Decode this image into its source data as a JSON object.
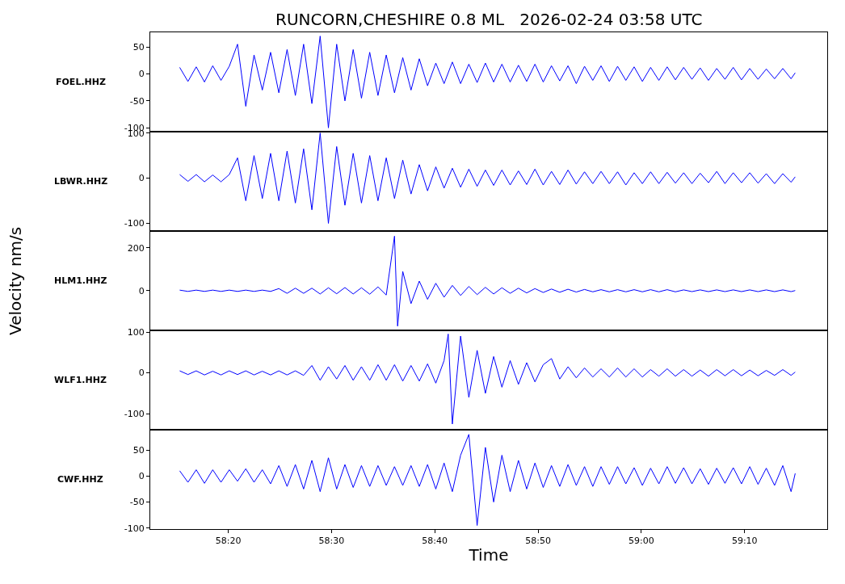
{
  "chart_data": [
    {
      "type": "line",
      "title": "RUNCORN,CHESHIRE 0.8 ML   2026-02-24 03:58 UTC",
      "ylabel": "FOEL.HHZ",
      "tick_labels": "y",
      "grid": false,
      "marker": "none",
      "line_style": "solid",
      "xlim": [
        "2026-02-24T03:58:12.45",
        "2026-02-24T03:59:18"
      ],
      "ylim": [
        -107,
        77
      ],
      "yticks": [
        50,
        0,
        -50,
        -100
      ],
      "x": [
        "2026-02-24T03:58:15.3",
        "2026-02-24T03:58:16.1",
        "2026-02-24T03:58:16.9",
        "2026-02-24T03:58:17.7",
        "2026-02-24T03:58:18.5",
        "2026-02-24T03:58:19.3",
        "2026-02-24T03:58:20.1",
        "2026-02-24T03:58:20.9",
        "2026-02-24T03:58:21.7",
        "2026-02-24T03:58:22.5",
        "2026-02-24T03:58:23.3",
        "2026-02-24T03:58:24.1",
        "2026-02-24T03:58:24.9",
        "2026-02-24T03:58:25.7",
        "2026-02-24T03:58:26.5",
        "2026-02-24T03:58:27.3",
        "2026-02-24T03:58:28.1",
        "2026-02-24T03:58:28.9",
        "2026-02-24T03:58:29.7",
        "2026-02-24T03:58:30.5",
        "2026-02-24T03:58:31.3",
        "2026-02-24T03:58:32.1",
        "2026-02-24T03:58:32.9",
        "2026-02-24T03:58:33.7",
        "2026-02-24T03:58:34.5",
        "2026-02-24T03:58:35.3",
        "2026-02-24T03:58:36.1",
        "2026-02-24T03:58:36.9",
        "2026-02-24T03:58:37.7",
        "2026-02-24T03:58:38.5",
        "2026-02-24T03:58:39.3",
        "2026-02-24T03:58:40.1",
        "2026-02-24T03:58:40.9",
        "2026-02-24T03:58:41.7",
        "2026-02-24T03:58:42.5",
        "2026-02-24T03:58:43.3",
        "2026-02-24T03:58:44.1",
        "2026-02-24T03:58:44.9",
        "2026-02-24T03:58:45.7",
        "2026-02-24T03:58:46.5",
        "2026-02-24T03:58:47.3",
        "2026-02-24T03:58:48.1",
        "2026-02-24T03:58:48.9",
        "2026-02-24T03:58:49.7",
        "2026-02-24T03:58:50.5",
        "2026-02-24T03:58:51.3",
        "2026-02-24T03:58:52.1",
        "2026-02-24T03:58:52.9",
        "2026-02-24T03:58:53.7",
        "2026-02-24T03:58:54.5",
        "2026-02-24T03:58:55.3",
        "2026-02-24T03:58:56.1",
        "2026-02-24T03:58:56.9",
        "2026-02-24T03:58:57.7",
        "2026-02-24T03:58:58.5",
        "2026-02-24T03:58:59.3",
        "2026-02-24T03:59:00.1",
        "2026-02-24T03:59:00.9",
        "2026-02-24T03:59:01.7",
        "2026-02-24T03:59:02.5",
        "2026-02-24T03:59:03.3",
        "2026-02-24T03:59:04.1",
        "2026-02-24T03:59:04.9",
        "2026-02-24T03:59:05.7",
        "2026-02-24T03:59:06.5",
        "2026-02-24T03:59:07.3",
        "2026-02-24T03:59:08.1",
        "2026-02-24T03:59:08.9",
        "2026-02-24T03:59:09.7",
        "2026-02-24T03:59:10.5",
        "2026-02-24T03:59:11.3",
        "2026-02-24T03:59:12.1",
        "2026-02-24T03:59:12.9",
        "2026-02-24T03:59:13.7",
        "2026-02-24T03:59:14.5",
        "2026-02-24T03:59:14.9"
      ],
      "series": [
        {
          "color": "#0000ff",
          "values": [
            12,
            -14,
            13,
            -15,
            15,
            -12,
            14,
            55,
            -60,
            35,
            -30,
            40,
            -35,
            45,
            -40,
            55,
            -55,
            70,
            -100,
            55,
            -50,
            45,
            -45,
            40,
            -40,
            35,
            -35,
            30,
            -30,
            28,
            -22,
            20,
            -18,
            22,
            -18,
            18,
            -16,
            20,
            -15,
            18,
            -15,
            16,
            -14,
            18,
            -15,
            15,
            -13,
            15,
            -18,
            14,
            -12,
            15,
            -14,
            14,
            -12,
            13,
            -14,
            12,
            -12,
            13,
            -11,
            12,
            -10,
            11,
            -12,
            10,
            -10,
            12,
            -11,
            10,
            -10,
            9,
            -9,
            10,
            -9,
            2
          ]
        }
      ]
    },
    {
      "type": "line",
      "ylabel": "LBWR.HHZ",
      "tick_labels": "y",
      "grid": false,
      "marker": "none",
      "line_style": "solid",
      "xlim": [
        "2026-02-24T03:58:12.45",
        "2026-02-24T03:59:18"
      ],
      "ylim": [
        -117,
        103
      ],
      "yticks": [
        100,
        0,
        -100
      ],
      "x": [
        "2026-02-24T03:58:15.3",
        "2026-02-24T03:58:16.1",
        "2026-02-24T03:58:16.9",
        "2026-02-24T03:58:17.7",
        "2026-02-24T03:58:18.5",
        "2026-02-24T03:58:19.3",
        "2026-02-24T03:58:20.1",
        "2026-02-24T03:58:20.9",
        "2026-02-24T03:58:21.7",
        "2026-02-24T03:58:22.5",
        "2026-02-24T03:58:23.3",
        "2026-02-24T03:58:24.1",
        "2026-02-24T03:58:24.9",
        "2026-02-24T03:58:25.7",
        "2026-02-24T03:58:26.5",
        "2026-02-24T03:58:27.3",
        "2026-02-24T03:58:28.1",
        "2026-02-24T03:58:28.9",
        "2026-02-24T03:58:29.7",
        "2026-02-24T03:58:30.5",
        "2026-02-24T03:58:31.3",
        "2026-02-24T03:58:32.1",
        "2026-02-24T03:58:32.9",
        "2026-02-24T03:58:33.7",
        "2026-02-24T03:58:34.5",
        "2026-02-24T03:58:35.3",
        "2026-02-24T03:58:36.1",
        "2026-02-24T03:58:36.9",
        "2026-02-24T03:58:37.7",
        "2026-02-24T03:58:38.5",
        "2026-02-24T03:58:39.3",
        "2026-02-24T03:58:40.1",
        "2026-02-24T03:58:40.9",
        "2026-02-24T03:58:41.7",
        "2026-02-24T03:58:42.5",
        "2026-02-24T03:58:43.3",
        "2026-02-24T03:58:44.1",
        "2026-02-24T03:58:44.9",
        "2026-02-24T03:58:45.7",
        "2026-02-24T03:58:46.5",
        "2026-02-24T03:58:47.3",
        "2026-02-24T03:58:48.1",
        "2026-02-24T03:58:48.9",
        "2026-02-24T03:58:49.7",
        "2026-02-24T03:58:50.5",
        "2026-02-24T03:58:51.3",
        "2026-02-24T03:58:52.1",
        "2026-02-24T03:58:52.9",
        "2026-02-24T03:58:53.7",
        "2026-02-24T03:58:54.5",
        "2026-02-24T03:58:55.3",
        "2026-02-24T03:58:56.1",
        "2026-02-24T03:58:56.9",
        "2026-02-24T03:58:57.7",
        "2026-02-24T03:58:58.5",
        "2026-02-24T03:58:59.3",
        "2026-02-24T03:59:00.1",
        "2026-02-24T03:59:00.9",
        "2026-02-24T03:59:01.7",
        "2026-02-24T03:59:02.5",
        "2026-02-24T03:59:03.3",
        "2026-02-24T03:59:04.1",
        "2026-02-24T03:59:04.9",
        "2026-02-24T03:59:05.7",
        "2026-02-24T03:59:06.5",
        "2026-02-24T03:59:07.3",
        "2026-02-24T03:59:08.1",
        "2026-02-24T03:59:08.9",
        "2026-02-24T03:59:09.7",
        "2026-02-24T03:59:10.5",
        "2026-02-24T03:59:11.3",
        "2026-02-24T03:59:12.1",
        "2026-02-24T03:59:12.9",
        "2026-02-24T03:59:13.7",
        "2026-02-24T03:59:14.5",
        "2026-02-24T03:59:14.9"
      ],
      "series": [
        {
          "color": "#0000ff",
          "values": [
            8,
            -7,
            8,
            -8,
            7,
            -8,
            8,
            45,
            -50,
            50,
            -45,
            55,
            -50,
            60,
            -55,
            65,
            -70,
            100,
            -100,
            70,
            -60,
            55,
            -55,
            50,
            -50,
            45,
            -45,
            40,
            -35,
            30,
            -28,
            25,
            -22,
            22,
            -20,
            20,
            -18,
            18,
            -16,
            18,
            -15,
            16,
            -14,
            20,
            -15,
            15,
            -14,
            18,
            -13,
            14,
            -12,
            15,
            -12,
            14,
            -15,
            12,
            -12,
            14,
            -12,
            13,
            -11,
            12,
            -12,
            11,
            -10,
            15,
            -12,
            12,
            -10,
            12,
            -11,
            10,
            -12,
            10,
            -9,
            3
          ]
        }
      ]
    },
    {
      "type": "line",
      "ylabel": "HLM1.HHZ",
      "annotations": [
        "Velocity nm/s"
      ],
      "tick_labels": "y",
      "grid": false,
      "marker": "none",
      "line_style": "solid",
      "xlim": [
        "2026-02-24T03:58:12.45",
        "2026-02-24T03:59:18"
      ],
      "ylim": [
        -185,
        279
      ],
      "yticks": [
        200,
        0
      ],
      "x": [
        "2026-02-24T03:58:15.3",
        "2026-02-24T03:58:16.1",
        "2026-02-24T03:58:16.9",
        "2026-02-24T03:58:17.7",
        "2026-02-24T03:58:18.5",
        "2026-02-24T03:58:19.3",
        "2026-02-24T03:58:20.1",
        "2026-02-24T03:58:20.9",
        "2026-02-24T03:58:21.7",
        "2026-02-24T03:58:22.5",
        "2026-02-24T03:58:23.3",
        "2026-02-24T03:58:24.1",
        "2026-02-24T03:58:24.9",
        "2026-02-24T03:58:25.7",
        "2026-02-24T03:58:26.5",
        "2026-02-24T03:58:27.3",
        "2026-02-24T03:58:28.1",
        "2026-02-24T03:58:28.9",
        "2026-02-24T03:58:29.7",
        "2026-02-24T03:58:30.5",
        "2026-02-24T03:58:31.3",
        "2026-02-24T03:58:32.1",
        "2026-02-24T03:58:32.9",
        "2026-02-24T03:58:33.7",
        "2026-02-24T03:58:34.5",
        "2026-02-24T03:58:35.3",
        "2026-02-24T03:58:36.1",
        "2026-02-24T03:58:36.4",
        "2026-02-24T03:58:36.9",
        "2026-02-24T03:58:37.7",
        "2026-02-24T03:58:38.5",
        "2026-02-24T03:58:39.3",
        "2026-02-24T03:58:40.1",
        "2026-02-24T03:58:40.9",
        "2026-02-24T03:58:41.7",
        "2026-02-24T03:58:42.5",
        "2026-02-24T03:58:43.3",
        "2026-02-24T03:58:44.1",
        "2026-02-24T03:58:44.9",
        "2026-02-24T03:58:45.7",
        "2026-02-24T03:58:46.5",
        "2026-02-24T03:58:47.3",
        "2026-02-24T03:58:48.1",
        "2026-02-24T03:58:48.9",
        "2026-02-24T03:58:49.7",
        "2026-02-24T03:58:50.5",
        "2026-02-24T03:58:51.3",
        "2026-02-24T03:58:52.1",
        "2026-02-24T03:58:52.9",
        "2026-02-24T03:58:53.7",
        "2026-02-24T03:58:54.5",
        "2026-02-24T03:58:55.3",
        "2026-02-24T03:58:56.1",
        "2026-02-24T03:58:56.9",
        "2026-02-24T03:58:57.7",
        "2026-02-24T03:58:58.5",
        "2026-02-24T03:58:59.3",
        "2026-02-24T03:59:00.1",
        "2026-02-24T03:59:00.9",
        "2026-02-24T03:59:01.7",
        "2026-02-24T03:59:02.5",
        "2026-02-24T03:59:03.3",
        "2026-02-24T03:59:04.1",
        "2026-02-24T03:59:04.9",
        "2026-02-24T03:59:05.7",
        "2026-02-24T03:59:06.5",
        "2026-02-24T03:59:07.3",
        "2026-02-24T03:59:08.1",
        "2026-02-24T03:59:08.9",
        "2026-02-24T03:59:09.7",
        "2026-02-24T03:59:10.5",
        "2026-02-24T03:59:11.3",
        "2026-02-24T03:59:12.1",
        "2026-02-24T03:59:12.9",
        "2026-02-24T03:59:13.7",
        "2026-02-24T03:59:14.5",
        "2026-02-24T03:59:14.9"
      ],
      "series": [
        {
          "color": "#0000ff",
          "values": [
            3,
            -3,
            3,
            -3,
            3,
            -3,
            3,
            -3,
            3,
            -3,
            3,
            -3,
            10,
            -12,
            12,
            -12,
            12,
            -15,
            14,
            -14,
            15,
            -15,
            14,
            -16,
            18,
            -20,
            255,
            -165,
            90,
            -60,
            45,
            -40,
            35,
            -30,
            25,
            -22,
            20,
            -18,
            16,
            -15,
            14,
            -12,
            12,
            -10,
            10,
            -8,
            8,
            -7,
            7,
            -6,
            6,
            -5,
            5,
            -5,
            5,
            -5,
            5,
            -5,
            5,
            -5,
            5,
            -5,
            4,
            -4,
            4,
            -4,
            4,
            -4,
            4,
            -4,
            4,
            -4,
            4,
            -4,
            4,
            -4,
            1
          ]
        }
      ]
    },
    {
      "type": "line",
      "ylabel": "WLF1.HHZ",
      "tick_labels": "y",
      "grid": false,
      "marker": "none",
      "line_style": "solid",
      "xlim": [
        "2026-02-24T03:58:12.45",
        "2026-02-24T03:59:18"
      ],
      "ylim": [
        -139,
        104
      ],
      "yticks": [
        100,
        0,
        -100
      ],
      "x": [
        "2026-02-24T03:58:15.3",
        "2026-02-24T03:58:16.1",
        "2026-02-24T03:58:16.9",
        "2026-02-24T03:58:17.7",
        "2026-02-24T03:58:18.5",
        "2026-02-24T03:58:19.3",
        "2026-02-24T03:58:20.1",
        "2026-02-24T03:58:20.9",
        "2026-02-24T03:58:21.7",
        "2026-02-24T03:58:22.5",
        "2026-02-24T03:58:23.3",
        "2026-02-24T03:58:24.1",
        "2026-02-24T03:58:24.9",
        "2026-02-24T03:58:25.7",
        "2026-02-24T03:58:26.5",
        "2026-02-24T03:58:27.3",
        "2026-02-24T03:58:28.1",
        "2026-02-24T03:58:28.9",
        "2026-02-24T03:58:29.7",
        "2026-02-24T03:58:30.5",
        "2026-02-24T03:58:31.3",
        "2026-02-24T03:58:32.1",
        "2026-02-24T03:58:32.9",
        "2026-02-24T03:58:33.7",
        "2026-02-24T03:58:34.5",
        "2026-02-24T03:58:35.3",
        "2026-02-24T03:58:36.1",
        "2026-02-24T03:58:36.9",
        "2026-02-24T03:58:37.7",
        "2026-02-24T03:58:38.5",
        "2026-02-24T03:58:39.3",
        "2026-02-24T03:58:40.1",
        "2026-02-24T03:58:40.9",
        "2026-02-24T03:58:41.3",
        "2026-02-24T03:58:41.7",
        "2026-02-24T03:58:42.5",
        "2026-02-24T03:58:43.3",
        "2026-02-24T03:58:44.1",
        "2026-02-24T03:58:44.9",
        "2026-02-24T03:58:45.7",
        "2026-02-24T03:58:46.5",
        "2026-02-24T03:58:47.3",
        "2026-02-24T03:58:48.1",
        "2026-02-24T03:58:48.9",
        "2026-02-24T03:58:49.7",
        "2026-02-24T03:58:50.5",
        "2026-02-24T03:58:51.3",
        "2026-02-24T03:58:52.1",
        "2026-02-24T03:58:52.9",
        "2026-02-24T03:58:53.7",
        "2026-02-24T03:58:54.5",
        "2026-02-24T03:58:55.3",
        "2026-02-24T03:58:56.1",
        "2026-02-24T03:58:56.9",
        "2026-02-24T03:58:57.7",
        "2026-02-24T03:58:58.5",
        "2026-02-24T03:58:59.3",
        "2026-02-24T03:59:00.1",
        "2026-02-24T03:59:00.9",
        "2026-02-24T03:59:01.7",
        "2026-02-24T03:59:02.5",
        "2026-02-24T03:59:03.3",
        "2026-02-24T03:59:04.1",
        "2026-02-24T03:59:04.9",
        "2026-02-24T03:59:05.7",
        "2026-02-24T03:59:06.5",
        "2026-02-24T03:59:07.3",
        "2026-02-24T03:59:08.1",
        "2026-02-24T03:59:08.9",
        "2026-02-24T03:59:09.7",
        "2026-02-24T03:59:10.5",
        "2026-02-24T03:59:11.3",
        "2026-02-24T03:59:12.1",
        "2026-02-24T03:59:12.9",
        "2026-02-24T03:59:13.7",
        "2026-02-24T03:59:14.5",
        "2026-02-24T03:59:14.9"
      ],
      "series": [
        {
          "color": "#0000ff",
          "values": [
            5,
            -4,
            5,
            -5,
            4,
            -5,
            5,
            -4,
            5,
            -5,
            4,
            -5,
            5,
            -5,
            5,
            -6,
            18,
            -18,
            15,
            -15,
            18,
            -18,
            15,
            -18,
            20,
            -18,
            20,
            -20,
            18,
            -20,
            22,
            -25,
            30,
            95,
            -125,
            90,
            -60,
            55,
            -50,
            40,
            -35,
            30,
            -28,
            25,
            -22,
            20,
            35,
            -15,
            15,
            -12,
            12,
            -10,
            10,
            -10,
            12,
            -10,
            10,
            -10,
            8,
            -8,
            10,
            -8,
            8,
            -8,
            7,
            -8,
            8,
            -7,
            8,
            -7,
            7,
            -7,
            6,
            -6,
            8,
            -6,
            2
          ]
        }
      ]
    },
    {
      "type": "line",
      "ylabel": "CWF.HHZ",
      "xlabel": "Time",
      "grid": false,
      "marker": "none",
      "line_style": "solid",
      "xlim": [
        "2026-02-24T03:58:12.45",
        "2026-02-24T03:59:18"
      ],
      "xticks": [
        {
          "value": "2026-02-24T03:58:20",
          "label": "58:20"
        },
        {
          "value": "2026-02-24T03:58:30",
          "label": "58:30"
        },
        {
          "value": "2026-02-24T03:58:40",
          "label": "58:40"
        },
        {
          "value": "2026-02-24T03:58:50",
          "label": "58:50"
        },
        {
          "value": "2026-02-24T03:59:00",
          "label": "59:00"
        },
        {
          "value": "2026-02-24T03:59:10",
          "label": "59:10"
        }
      ],
      "ylim": [
        -102,
        89
      ],
      "yticks": [
        50,
        0,
        -50,
        -100
      ],
      "x": [
        "2026-02-24T03:58:15.3",
        "2026-02-24T03:58:16.1",
        "2026-02-24T03:58:16.9",
        "2026-02-24T03:58:17.7",
        "2026-02-24T03:58:18.5",
        "2026-02-24T03:58:19.3",
        "2026-02-24T03:58:20.1",
        "2026-02-24T03:58:20.9",
        "2026-02-24T03:58:21.7",
        "2026-02-24T03:58:22.5",
        "2026-02-24T03:58:23.3",
        "2026-02-24T03:58:24.1",
        "2026-02-24T03:58:24.9",
        "2026-02-24T03:58:25.7",
        "2026-02-24T03:58:26.5",
        "2026-02-24T03:58:27.3",
        "2026-02-24T03:58:28.1",
        "2026-02-24T03:58:28.9",
        "2026-02-24T03:58:29.7",
        "2026-02-24T03:58:30.5",
        "2026-02-24T03:58:31.3",
        "2026-02-24T03:58:32.1",
        "2026-02-24T03:58:32.9",
        "2026-02-24T03:58:33.7",
        "2026-02-24T03:58:34.5",
        "2026-02-24T03:58:35.3",
        "2026-02-24T03:58:36.1",
        "2026-02-24T03:58:36.9",
        "2026-02-24T03:58:37.7",
        "2026-02-24T03:58:38.5",
        "2026-02-24T03:58:39.3",
        "2026-02-24T03:58:40.1",
        "2026-02-24T03:58:40.9",
        "2026-02-24T03:58:41.7",
        "2026-02-24T03:58:42.5",
        "2026-02-24T03:58:43.3",
        "2026-02-24T03:58:44.1",
        "2026-02-24T03:58:44.9",
        "2026-02-24T03:58:45.7",
        "2026-02-24T03:58:46.5",
        "2026-02-24T03:58:47.3",
        "2026-02-24T03:58:48.1",
        "2026-02-24T03:58:48.9",
        "2026-02-24T03:58:49.7",
        "2026-02-24T03:58:50.5",
        "2026-02-24T03:58:51.3",
        "2026-02-24T03:58:52.1",
        "2026-02-24T03:58:52.9",
        "2026-02-24T03:58:53.7",
        "2026-02-24T03:58:54.5",
        "2026-02-24T03:58:55.3",
        "2026-02-24T03:58:56.1",
        "2026-02-24T03:58:56.9",
        "2026-02-24T03:58:57.7",
        "2026-02-24T03:58:58.5",
        "2026-02-24T03:58:59.3",
        "2026-02-24T03:59:00.1",
        "2026-02-24T03:59:00.9",
        "2026-02-24T03:59:01.7",
        "2026-02-24T03:59:02.5",
        "2026-02-24T03:59:03.3",
        "2026-02-24T03:59:04.1",
        "2026-02-24T03:59:04.9",
        "2026-02-24T03:59:05.7",
        "2026-02-24T03:59:06.5",
        "2026-02-24T03:59:07.3",
        "2026-02-24T03:59:08.1",
        "2026-02-24T03:59:08.9",
        "2026-02-24T03:59:09.7",
        "2026-02-24T03:59:10.5",
        "2026-02-24T03:59:11.3",
        "2026-02-24T03:59:12.1",
        "2026-02-24T03:59:12.9",
        "2026-02-24T03:59:13.7",
        "2026-02-24T03:59:14.5",
        "2026-02-24T03:59:14.9"
      ],
      "series": [
        {
          "color": "#0000ff",
          "values": [
            10,
            -12,
            12,
            -14,
            12,
            -12,
            12,
            -10,
            14,
            -12,
            12,
            -15,
            20,
            -20,
            22,
            -25,
            30,
            -30,
            35,
            -25,
            22,
            -22,
            20,
            -20,
            20,
            -18,
            18,
            -18,
            20,
            -20,
            22,
            -25,
            25,
            -30,
            40,
            80,
            -95,
            55,
            -50,
            40,
            -30,
            30,
            -25,
            25,
            -22,
            20,
            -20,
            22,
            -18,
            18,
            -20,
            18,
            -16,
            18,
            -15,
            16,
            -18,
            15,
            -15,
            18,
            -14,
            16,
            -15,
            14,
            -16,
            15,
            -14,
            16,
            -15,
            18,
            -16,
            15,
            -18,
            20,
            -30,
            5
          ]
        }
      ]
    }
  ]
}
